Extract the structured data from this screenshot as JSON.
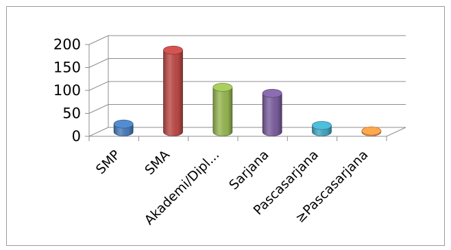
{
  "chart_data": {
    "type": "bar",
    "style": "3d-cylinder",
    "categories": [
      "SMP",
      "SMA",
      "Akademi/Dipl...",
      "Sarjana",
      "Pascasarjana",
      "≥Pascasarjana"
    ],
    "values": [
      17,
      178,
      97,
      84,
      14,
      2
    ],
    "colors": [
      "#4a7ebb",
      "#be4b48",
      "#98b954",
      "#7d60a0",
      "#46aac5",
      "#f79646"
    ],
    "ylim": [
      0,
      200
    ],
    "yticks": [
      "0",
      "50",
      "100",
      "150",
      "200"
    ],
    "grid": true,
    "legend": "none",
    "title": "",
    "xlabel": "",
    "ylabel": ""
  }
}
